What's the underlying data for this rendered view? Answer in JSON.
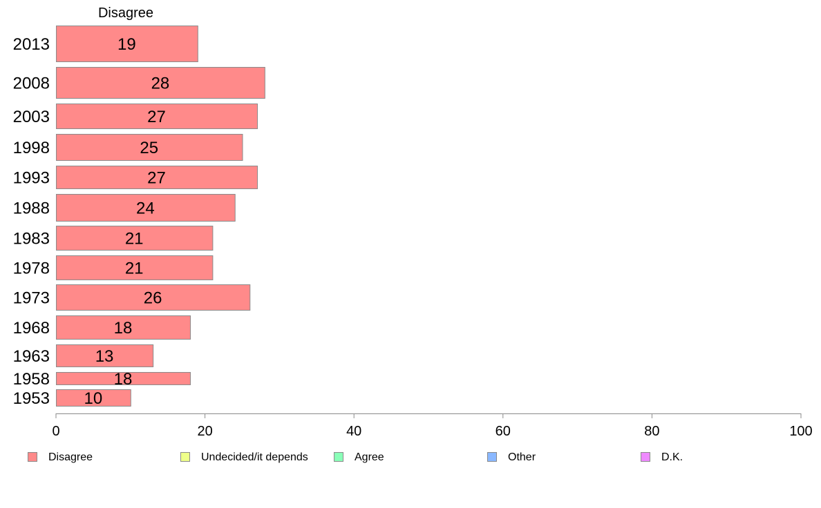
{
  "chart_data": {
    "type": "bar",
    "orientation": "horizontal",
    "title": "",
    "series_title": "Disagree",
    "categories": [
      "2013",
      "2008",
      "2003",
      "1998",
      "1993",
      "1988",
      "1983",
      "1978",
      "1973",
      "1968",
      "1963",
      "1958",
      "1953"
    ],
    "series": [
      {
        "name": "Disagree",
        "color": "#ff8a8a",
        "values": [
          19,
          28,
          27,
          25,
          27,
          24,
          21,
          21,
          26,
          18,
          13,
          18,
          10
        ],
        "value_labels": [
          "19",
          "28",
          "27",
          "25",
          "27",
          "24",
          "21",
          "21",
          "26",
          "18",
          "13",
          "18",
          "10"
        ]
      }
    ],
    "xlim": [
      0,
      100
    ],
    "xticks": [
      "0",
      "20",
      "40",
      "60",
      "80",
      "100"
    ],
    "grid": false,
    "legend": {
      "placement": "bottom",
      "entries": [
        {
          "label": "Disagree",
          "color": "#ff8a8a"
        },
        {
          "label": "Undecided/it depends",
          "color": "#efff8a"
        },
        {
          "label": "Agree",
          "color": "#8affb8"
        },
        {
          "label": "Other",
          "color": "#8ab8ff"
        },
        {
          "label": "D.K.",
          "color": "#ef8aff"
        }
      ]
    }
  }
}
